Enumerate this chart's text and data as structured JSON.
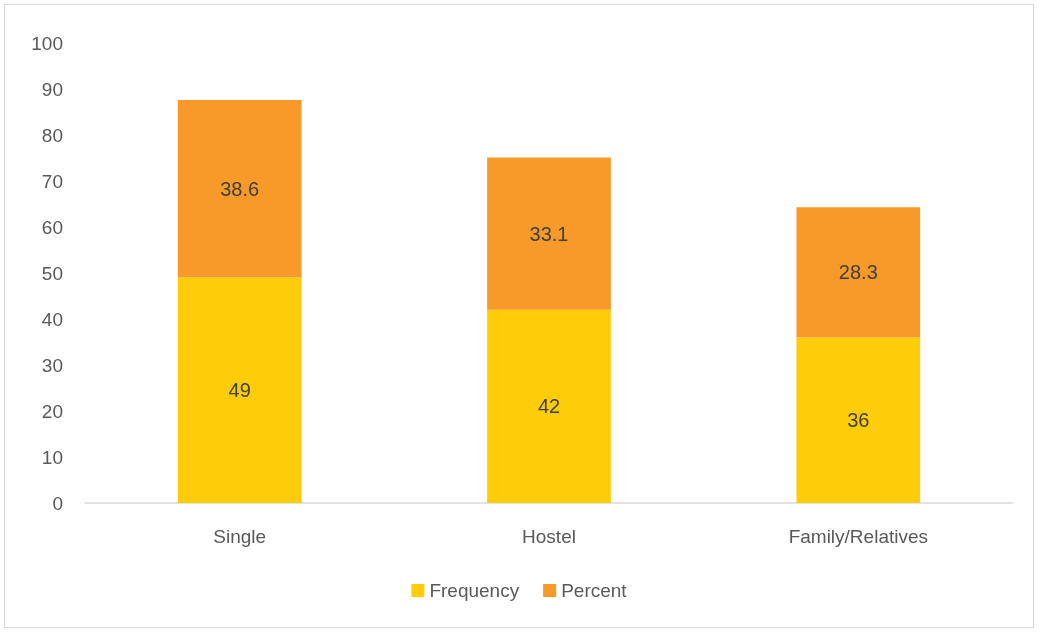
{
  "chart_data": {
    "type": "bar",
    "stacked": true,
    "categories": [
      "Single",
      "Hostel",
      "Family/Relatives"
    ],
    "series": [
      {
        "name": "Frequency",
        "color": "#ffcc0a",
        "values": [
          49,
          42,
          36
        ]
      },
      {
        "name": "Percent",
        "color": "#f79a29",
        "values": [
          38.6,
          33.1,
          28.3
        ]
      }
    ],
    "ylim": [
      0,
      100
    ],
    "yticks": [
      0,
      10,
      20,
      30,
      40,
      50,
      60,
      70,
      80,
      90,
      100
    ],
    "grid": false,
    "legend": "bottom",
    "data_labels": true
  }
}
